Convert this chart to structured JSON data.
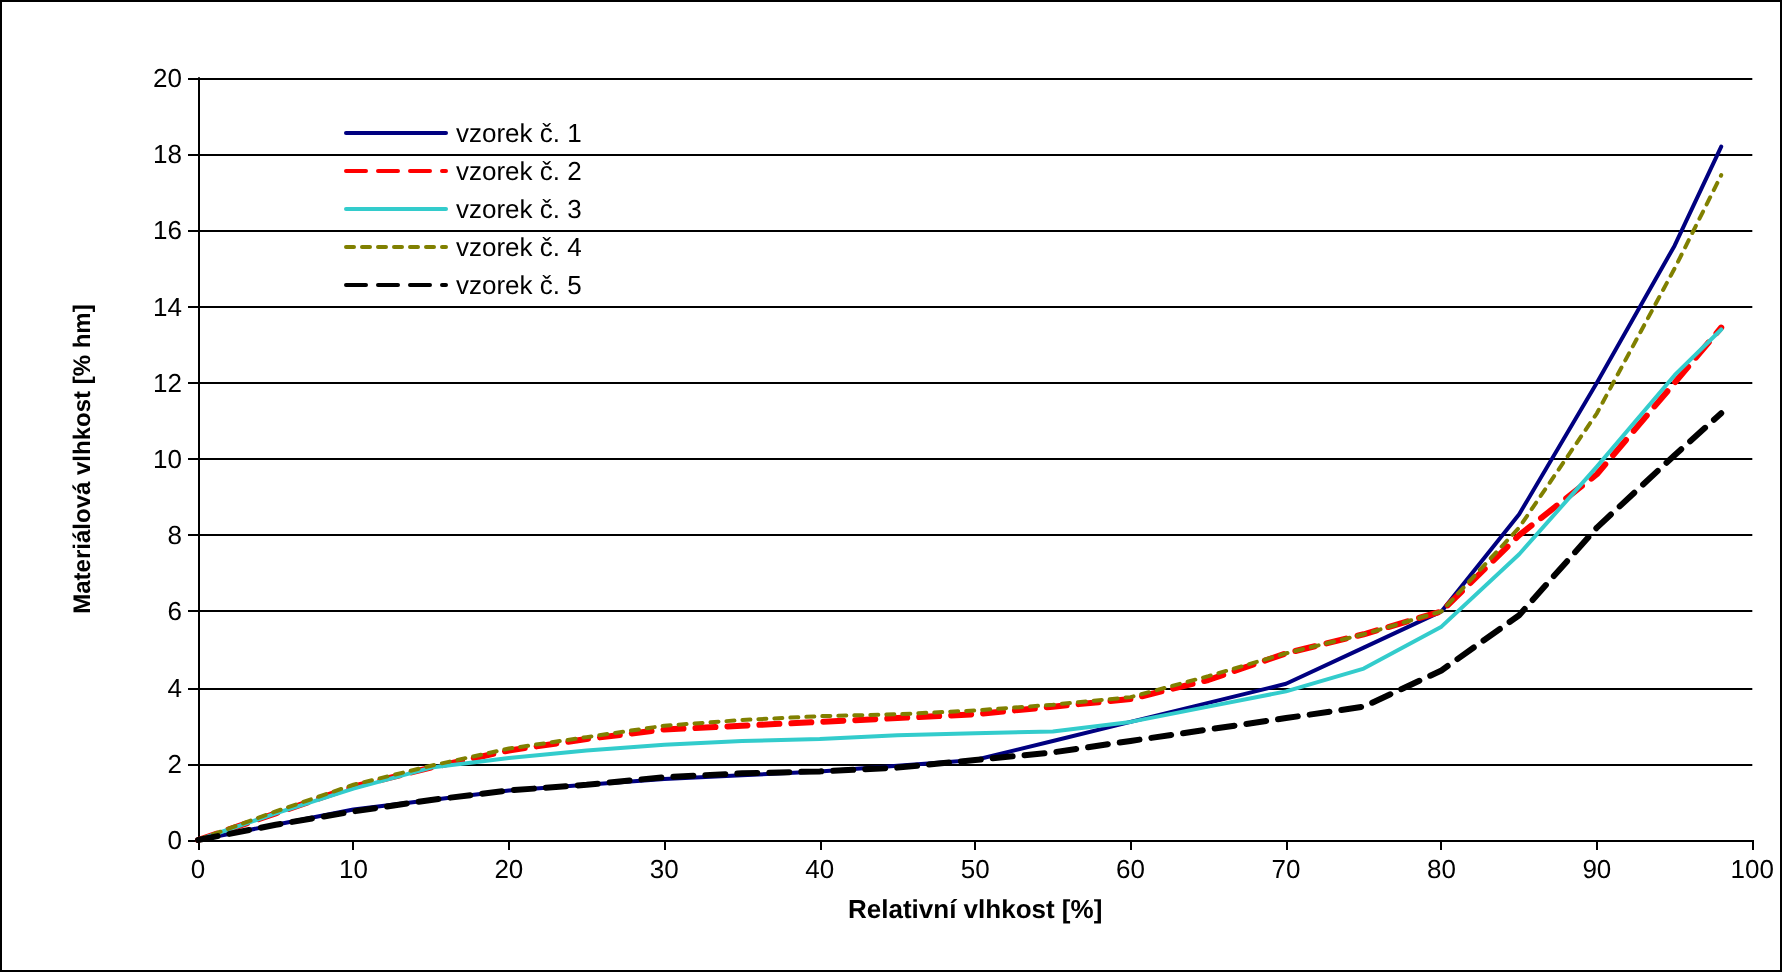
{
  "chart_data": {
    "type": "line",
    "xlabel": "Relativní vlhkost [%]",
    "ylabel": "Materiálová vlhkost [% hm]",
    "x": [
      0,
      5,
      10,
      15,
      20,
      25,
      30,
      35,
      40,
      45,
      50,
      55,
      60,
      65,
      70,
      75,
      80,
      85,
      90,
      95,
      98
    ],
    "xlim": [
      0,
      100
    ],
    "xticks": [
      0,
      10,
      20,
      30,
      40,
      50,
      60,
      70,
      80,
      90,
      100
    ],
    "ylim": [
      0,
      20
    ],
    "yticks": [
      0,
      2,
      4,
      6,
      8,
      10,
      12,
      14,
      16,
      18,
      20
    ],
    "grid": "y",
    "legend": "top left",
    "marker": "none",
    "series": [
      {
        "name": "vzorek č. 1",
        "color": "#000080",
        "line_style": "solid",
        "values": [
          0,
          0.4,
          0.8,
          1.05,
          1.3,
          1.45,
          1.6,
          1.7,
          1.8,
          1.95,
          2.1,
          2.6,
          3.1,
          3.6,
          4.1,
          5.05,
          6.0,
          8.55,
          12.0,
          15.6,
          18.2
        ]
      },
      {
        "name": "vzorek č. 2",
        "color": "#ff0000",
        "line_style": "dashed",
        "values": [
          0,
          0.7,
          1.4,
          1.9,
          2.35,
          2.65,
          2.9,
          3.0,
          3.1,
          3.2,
          3.3,
          3.5,
          3.7,
          4.2,
          4.9,
          5.4,
          6.0,
          8.0,
          9.6,
          12.0,
          13.45
        ]
      },
      {
        "name": "vzorek č. 3",
        "color": "#33cccc",
        "line_style": "solid",
        "values": [
          0,
          0.7,
          1.35,
          1.9,
          2.15,
          2.35,
          2.5,
          2.6,
          2.65,
          2.75,
          2.8,
          2.85,
          3.1,
          3.5,
          3.9,
          4.5,
          5.6,
          7.5,
          9.8,
          12.2,
          13.4
        ]
      },
      {
        "name": "vzorek č. 4",
        "color": "#808000",
        "line_style": "dotted",
        "values": [
          0,
          0.75,
          1.45,
          1.95,
          2.4,
          2.7,
          3.0,
          3.15,
          3.25,
          3.3,
          3.4,
          3.55,
          3.75,
          4.3,
          4.9,
          5.4,
          6.0,
          8.2,
          11.2,
          15.0,
          17.45
        ]
      },
      {
        "name": "vzorek č. 5",
        "color": "#000000",
        "line_style": "dashed",
        "values": [
          0,
          0.4,
          0.75,
          1.05,
          1.3,
          1.45,
          1.65,
          1.75,
          1.8,
          1.9,
          2.1,
          2.3,
          2.6,
          2.9,
          3.2,
          3.5,
          4.45,
          5.9,
          8.2,
          10.1,
          11.2
        ]
      }
    ]
  }
}
